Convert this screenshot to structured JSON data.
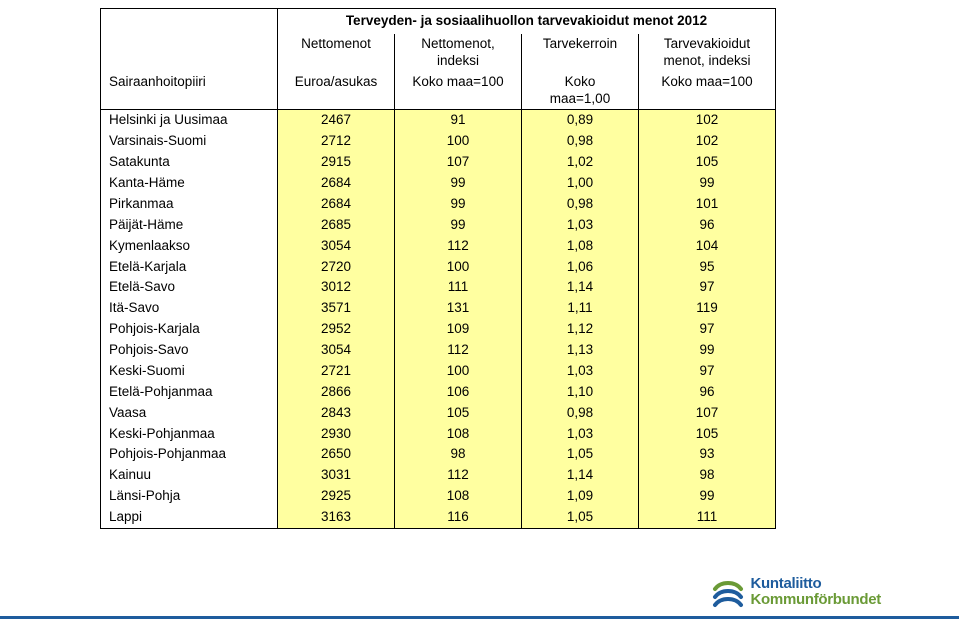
{
  "table": {
    "title": "Terveyden- ja sosiaalihuollon tarvevakioidut menot 2012",
    "header1": {
      "c0": "",
      "c1": "Nettomenot",
      "c2": "Nettomenot, indeksi",
      "c3": "Tarvekerroin",
      "c4": "Tarvevakioidut menot, indeksi"
    },
    "header2": {
      "c0": "Sairaanhoitopiiri",
      "c1": "Euroa/asukas",
      "c2": "Koko maa=100",
      "c3": "Koko maa=1,00",
      "c4": "Koko maa=100"
    },
    "cell_bg": "#ffffa0",
    "border_color": "#000000",
    "font_size_pt": 10,
    "rows": [
      {
        "label": "Helsinki ja Uusimaa",
        "c1": "2467",
        "c2": "91",
        "c3": "0,89",
        "c4": "102"
      },
      {
        "label": "Varsinais-Suomi",
        "c1": "2712",
        "c2": "100",
        "c3": "0,98",
        "c4": "102"
      },
      {
        "label": "Satakunta",
        "c1": "2915",
        "c2": "107",
        "c3": "1,02",
        "c4": "105"
      },
      {
        "label": "Kanta-Häme",
        "c1": "2684",
        "c2": "99",
        "c3": "1,00",
        "c4": "99"
      },
      {
        "label": "Pirkanmaa",
        "c1": "2684",
        "c2": "99",
        "c3": "0,98",
        "c4": "101"
      },
      {
        "label": "Päijät-Häme",
        "c1": "2685",
        "c2": "99",
        "c3": "1,03",
        "c4": "96"
      },
      {
        "label": "Kymenlaakso",
        "c1": "3054",
        "c2": "112",
        "c3": "1,08",
        "c4": "104"
      },
      {
        "label": "Etelä-Karjala",
        "c1": "2720",
        "c2": "100",
        "c3": "1,06",
        "c4": "95"
      },
      {
        "label": "Etelä-Savo",
        "c1": "3012",
        "c2": "111",
        "c3": "1,14",
        "c4": "97"
      },
      {
        "label": "Itä-Savo",
        "c1": "3571",
        "c2": "131",
        "c3": "1,11",
        "c4": "119"
      },
      {
        "label": "Pohjois-Karjala",
        "c1": "2952",
        "c2": "109",
        "c3": "1,12",
        "c4": "97"
      },
      {
        "label": "Pohjois-Savo",
        "c1": "3054",
        "c2": "112",
        "c3": "1,13",
        "c4": "99"
      },
      {
        "label": "Keski-Suomi",
        "c1": "2721",
        "c2": "100",
        "c3": "1,03",
        "c4": "97"
      },
      {
        "label": "Etelä-Pohjanmaa",
        "c1": "2866",
        "c2": "106",
        "c3": "1,10",
        "c4": "96"
      },
      {
        "label": "Vaasa",
        "c1": "2843",
        "c2": "105",
        "c3": "0,98",
        "c4": "107"
      },
      {
        "label": "Keski-Pohjanmaa",
        "c1": "2930",
        "c2": "108",
        "c3": "1,03",
        "c4": "105"
      },
      {
        "label": "Pohjois-Pohjanmaa",
        "c1": "2650",
        "c2": "98",
        "c3": "1,05",
        "c4": "93"
      },
      {
        "label": "Kainuu",
        "c1": "3031",
        "c2": "112",
        "c3": "1,14",
        "c4": "98"
      },
      {
        "label": "Länsi-Pohja",
        "c1": "2925",
        "c2": "108",
        "c3": "1,09",
        "c4": "99"
      },
      {
        "label": "Lappi",
        "c1": "3163",
        "c2": "116",
        "c3": "1,05",
        "c4": "111"
      }
    ]
  },
  "logo": {
    "line1": "Kuntaliitto",
    "line2": "Kommunförbundet",
    "color1": "#1e5c9d",
    "color2": "#6a9a36"
  },
  "footer_bar_color": "#1e5c9d"
}
